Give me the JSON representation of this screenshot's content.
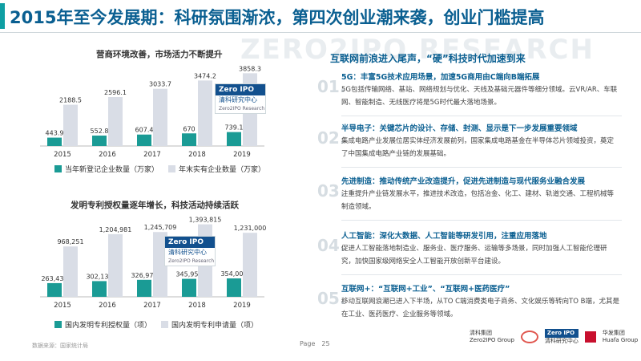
{
  "slide_title": "2015年至今发展期：科研氛围渐浓，第四次创业潮来袭，创业门槛提高",
  "watermark": "ZERO2IPO RESEARCH",
  "badge": {
    "brand": "Zero IPO",
    "cn": "清科研究中心",
    "en": "Zero2IPO Research"
  },
  "charts": {
    "colors": {
      "dark": "#1a9b95",
      "light": "#d9dde6"
    }
  },
  "chart_data": [
    {
      "type": "bar",
      "title": "营商环境改善，市场活力不断提升",
      "categories": [
        "2015",
        "2016",
        "2017",
        "2018",
        "2019"
      ],
      "series": [
        {
          "name": "当年新登记企业数量（万家）",
          "values": [
            443.9,
            552.8,
            607.4,
            670,
            739.1
          ],
          "labels": [
            "443.9",
            "552.8",
            "607.4",
            "670",
            "739.1"
          ]
        },
        {
          "name": "年末实有企业数量（万家）",
          "values": [
            2188.5,
            2596.1,
            3033.7,
            3474.2,
            3858.3
          ],
          "labels": [
            "2188.5",
            "2596.1",
            "3033.7",
            "3474.2",
            "3858.3"
          ]
        }
      ],
      "ylim": [
        0,
        4000
      ],
      "grid": false,
      "legend": "bottom"
    },
    {
      "type": "bar",
      "title": "发明专利授权量逐年增长，科技活动持续活跃",
      "categories": [
        "2015",
        "2016",
        "2017",
        "2018",
        "2019"
      ],
      "series": [
        {
          "name": "国内发明专利授权量（项）",
          "values": [
            263436,
            302136,
            326970,
            345959,
            354000
          ],
          "labels": [
            "263,436",
            "302,136",
            "326,970",
            "345,959",
            "354,000"
          ]
        },
        {
          "name": "国内发明专利申请量（项）",
          "values": [
            968251,
            1204981,
            1245709,
            1393815,
            1231000
          ],
          "labels": [
            "968,251",
            "1,204,981",
            "1,245,709",
            "1,393,815",
            "1,231,000"
          ]
        }
      ],
      "ylim": [
        0,
        1450000
      ],
      "grid": false,
      "legend": "bottom"
    }
  ],
  "right": {
    "title": "互联网前浪进入尾声，“硬”科技时代加速到来",
    "items": [
      {
        "num": "01.",
        "heading": "5G：丰富5G技术应用场景，加速5G商用由C端向B端拓展",
        "body": "5G包括传输网络、基站、网络规划与优化、天线及基础元器件等细分领域。云VR/AR、车联网、智能制造、无线医疗将是5G时代最大落地场景。"
      },
      {
        "num": "02.",
        "heading": "半导电子：关键芯片的设计、存储、封测、显示是下一步发展重要领域",
        "body": "集成电路产业发展位居实体经济发展前列，国家集成电路基金在半导体芯片领域投资，奠定了中国集成电路产业链的发展基础。"
      },
      {
        "num": "03.",
        "heading": "先进制造：推动传统产业改造提升，促进先进制造与现代服务业融合发展",
        "body": "注重提升产业链发展水平，推进技术改造，包括冶金、化工、建材、轨道交通、工程机械等制造领域。"
      },
      {
        "num": "04.",
        "heading": "人工智能：深化大数据、人工智能等研发引用，注重应用落地",
        "body": "促进人工智能落地制造业、服务业、医疗服务、运输等多场景，同时加强人工智能伦理研究，加快国家级网络安全人工智能开放创新平台建设。"
      },
      {
        "num": "05.",
        "heading": "互联网+：“互联网+工业”、“互联网+医药医疗”",
        "body": "移动互联网浪潮已进入下半场，从TO C端消费类电子商务、文化娱乐等转向TO B端，尤其是在工业、医药医疗、企业服务等领域。"
      }
    ]
  },
  "footer": {
    "source": "数据来源：国家统计局",
    "page_label": "Page",
    "page_number": "25",
    "logo1": "清科集团",
    "logo1_en": "Zero2IPO Group",
    "logo2": "清科研究中心",
    "logo3": "华发集团",
    "logo3_en": "Huafa Group"
  }
}
